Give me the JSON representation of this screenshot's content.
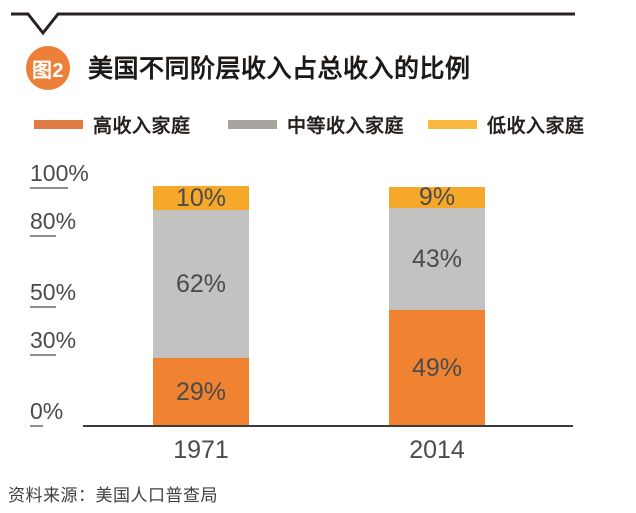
{
  "figure": {
    "badge_label": "图2",
    "title": "美国不同阶层收入占总收入的比例",
    "source": "资料来源：美国人口普查局"
  },
  "legend": [
    {
      "label": "高收入家庭",
      "color": "#E17B45"
    },
    {
      "label": "中等收入家庭",
      "color": "#A8A49F"
    },
    {
      "label": "低收入家庭",
      "color": "#F8B93E"
    }
  ],
  "chart_data": {
    "type": "bar",
    "stacked": true,
    "title": "美国不同阶层收入占总收入的比例",
    "categories": [
      "1971",
      "2014"
    ],
    "series": [
      {
        "name": "高收入家庭",
        "color": "#EF8332",
        "values": [
          29,
          49
        ],
        "data_labels": [
          "29%",
          "49%"
        ]
      },
      {
        "name": "中等收入家庭",
        "color": "#C3C2C1",
        "values": [
          62,
          43
        ],
        "data_labels": [
          "62%",
          "43%"
        ]
      },
      {
        "name": "低收入家庭",
        "color": "#F6A82B",
        "values": [
          10,
          9
        ],
        "data_labels": [
          "10%",
          "9%"
        ]
      }
    ],
    "y_axis": {
      "range": [
        0,
        100
      ],
      "ticks": [
        {
          "label": "100%",
          "value": 100
        },
        {
          "label": "80%",
          "value": 80
        },
        {
          "label": "50%",
          "value": 50
        },
        {
          "label": "30%",
          "value": 30
        },
        {
          "label": "0%",
          "value": 0
        }
      ]
    },
    "grid": false,
    "legend_position": "top",
    "accent_color": "#ED8038",
    "rule_color": "#27221f"
  }
}
